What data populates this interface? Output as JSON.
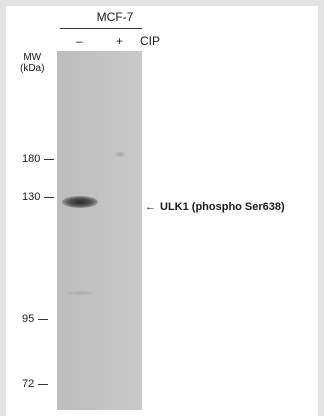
{
  "header": {
    "cell_line": "MCF-7",
    "lanes": [
      "–",
      "+"
    ],
    "treatment": "CIP"
  },
  "axis": {
    "mw_label_line1": "MW",
    "mw_label_line2": "(kDa)"
  },
  "markers": [
    {
      "label": "180"
    },
    {
      "label": "130"
    },
    {
      "label": "95"
    },
    {
      "label": "72"
    }
  ],
  "annotation": {
    "arrow": "←",
    "target_label": "ULK1 (phospho Ser638)"
  }
}
